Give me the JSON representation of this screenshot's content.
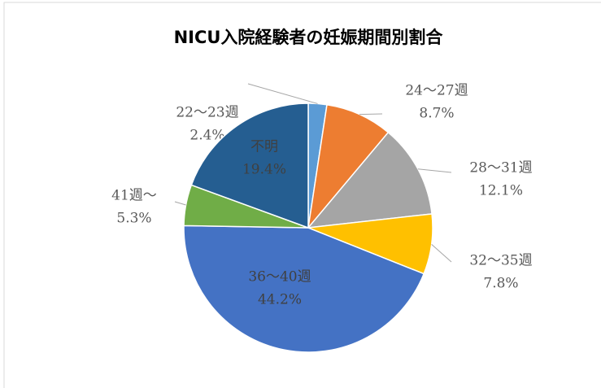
{
  "chart_data": {
    "type": "pie",
    "title": "NICU入院経験者の妊娠期間別割合",
    "categories": [
      "22～23週",
      "24～27週",
      "28～31週",
      "32～35週",
      "36～40週",
      "41週～",
      "不明"
    ],
    "values": [
      2.4,
      8.7,
      12.1,
      7.8,
      44.2,
      5.3,
      19.4
    ],
    "value_labels": [
      "2.4%",
      "8.7%",
      "12.1%",
      "7.8%",
      "44.2%",
      "5.3%",
      "19.4%"
    ],
    "colors": [
      "#5b9bd5",
      "#ed7d31",
      "#a5a5a5",
      "#ffc000",
      "#4472c4",
      "#70ad47",
      "#255e91"
    ]
  }
}
